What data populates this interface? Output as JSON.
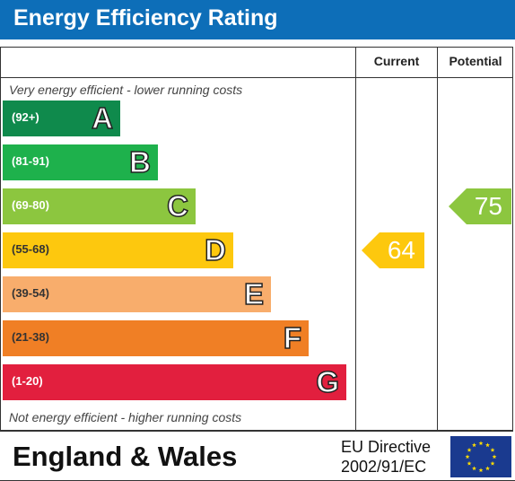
{
  "header": {
    "title": "Energy Efficiency Rating"
  },
  "columns": {
    "current": "Current",
    "potential": "Potential"
  },
  "notes": {
    "top": "Very energy efficient - lower running costs",
    "bottom": "Not energy efficient - higher running costs"
  },
  "footer": {
    "region": "England & Wales",
    "directive_line1": "EU Directive",
    "directive_line2": "2002/91/EC"
  },
  "colors": {
    "header": "#0d6eb8",
    "band_A": "#0f8a4c",
    "band_B": "#1eb14c",
    "band_C": "#8cc63f",
    "band_D": "#fdc80e",
    "band_E": "#f8ad6c",
    "band_F": "#f07f25",
    "band_G": "#e21f3e",
    "eu_flag": "#1a3a8f",
    "eu_stars": "#ffdd00"
  },
  "chart_data": {
    "type": "bar",
    "title": "Energy Efficiency Rating",
    "categories": [
      "A",
      "B",
      "C",
      "D",
      "E",
      "F",
      "G"
    ],
    "ranges": [
      "(92+)",
      "(81-91)",
      "(69-80)",
      "(55-68)",
      "(39-54)",
      "(21-38)",
      "(1-20)"
    ],
    "current": {
      "value": 64,
      "band": "D"
    },
    "potential": {
      "value": 75,
      "band": "C"
    }
  }
}
